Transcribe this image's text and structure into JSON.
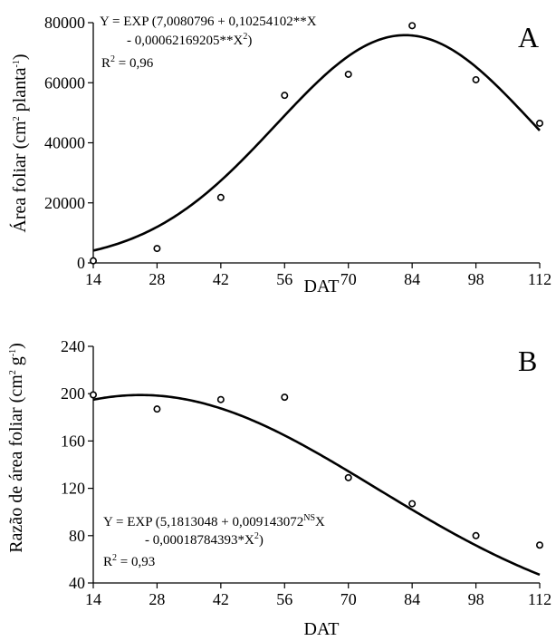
{
  "chart_data": [
    {
      "type": "scatter",
      "panel": "A",
      "xlabel": "DAT",
      "ylabel": {
        "main": "Área foliar (cm",
        "sup1": "2",
        "mid": " planta",
        "sup2": "-1",
        "end": ")"
      },
      "x_ticks": [
        14,
        28,
        42,
        56,
        70,
        84,
        98,
        112
      ],
      "y_ticks": [
        0,
        20000,
        40000,
        60000,
        80000
      ],
      "xlim": [
        14,
        112
      ],
      "ylim": [
        0,
        80000
      ],
      "equation": {
        "line1_pre": "Y = EXP (7,0080796 + 0,10254102**X",
        "line2_pre": "- 0,00062169205**X",
        "line2_sup": "2",
        "line2_post": ")",
        "r2_label": "R",
        "r2_sup": "2",
        "r2_value": " = 0,96"
      },
      "model": {
        "a": 7.0080796,
        "b": 0.10254102,
        "c": -0.00062169205
      },
      "points": [
        {
          "x": 14,
          "y": 700
        },
        {
          "x": 28,
          "y": 4800
        },
        {
          "x": 42,
          "y": 21800
        },
        {
          "x": 56,
          "y": 55800
        },
        {
          "x": 70,
          "y": 62800
        },
        {
          "x": 84,
          "y": 79000
        },
        {
          "x": 98,
          "y": 61000
        },
        {
          "x": 112,
          "y": 46500
        }
      ]
    },
    {
      "type": "scatter",
      "panel": "B",
      "xlabel": "DAT",
      "ylabel": {
        "main": "Razão de área  foliar (cm",
        "sup1": "2",
        "mid": " g",
        "sup2": "-1",
        "end": ")"
      },
      "x_ticks": [
        14,
        28,
        42,
        56,
        70,
        84,
        98,
        112
      ],
      "y_ticks": [
        40,
        80,
        120,
        160,
        200,
        240
      ],
      "xlim": [
        14,
        112
      ],
      "ylim": [
        40,
        240
      ],
      "equation": {
        "line1_pre": "Y = EXP (5,1813048 + 0,009143072",
        "line1_sup": "NS",
        "line1_post": "X",
        "line2_pre": "- 0,00018784393*X",
        "line2_sup": "2",
        "line2_post": ")",
        "r2_label": "R",
        "r2_sup": "2",
        "r2_value": " = 0,93"
      },
      "model": {
        "a": 5.1813048,
        "b": 0.009143072,
        "c": -0.00018784393
      },
      "points": [
        {
          "x": 14,
          "y": 199
        },
        {
          "x": 28,
          "y": 187
        },
        {
          "x": 42,
          "y": 195
        },
        {
          "x": 56,
          "y": 197
        },
        {
          "x": 70,
          "y": 129
        },
        {
          "x": 84,
          "y": 107
        },
        {
          "x": 98,
          "y": 80
        },
        {
          "x": 112,
          "y": 72
        }
      ]
    }
  ]
}
